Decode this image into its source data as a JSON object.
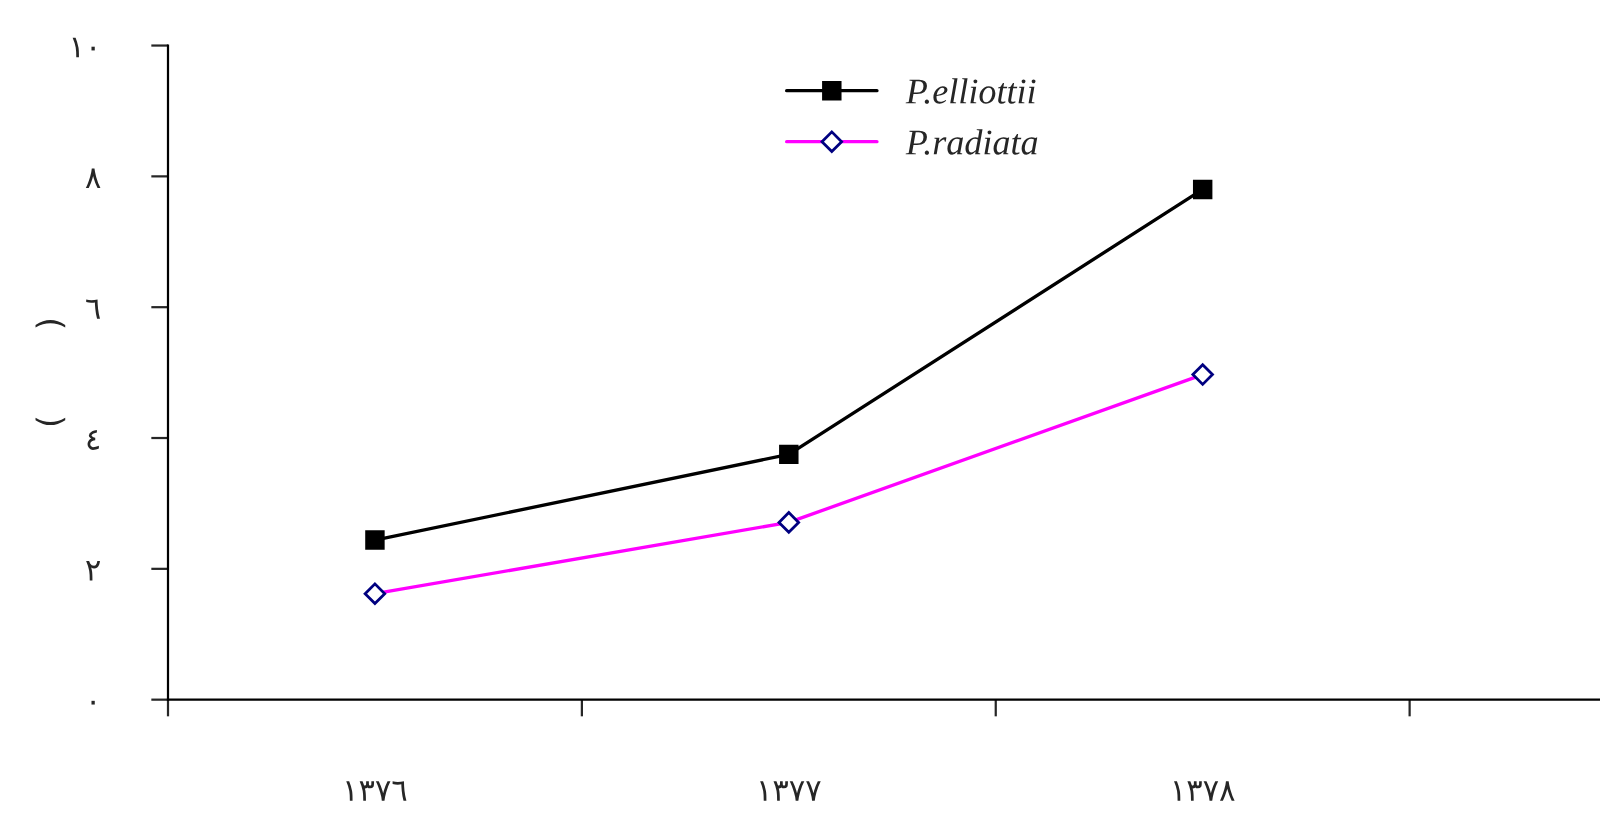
{
  "chart_data": {
    "type": "line",
    "ylabel": "(        )",
    "categories": [
      "١٣٧٦",
      "١٣٧٧",
      "١٣٧٨"
    ],
    "series": [
      {
        "name": "P.elliottii",
        "color": "#000000",
        "marker": "square",
        "values": [
          2.44,
          3.75,
          7.8
        ]
      },
      {
        "name": "P.radiata",
        "color": "#ff00ff",
        "marker": "diamond",
        "values": [
          1.62,
          2.71,
          4.97
        ]
      }
    ],
    "ylim": [
      0,
      10
    ],
    "yticks": [
      {
        "value": 0,
        "label": "٠"
      },
      {
        "value": 2,
        "label": "٢"
      },
      {
        "value": 4,
        "label": "٤"
      },
      {
        "value": 6,
        "label": "٦"
      },
      {
        "value": 8,
        "label": "٨"
      },
      {
        "value": 10,
        "label": "١٠"
      }
    ],
    "grid": false,
    "legend": "top"
  }
}
